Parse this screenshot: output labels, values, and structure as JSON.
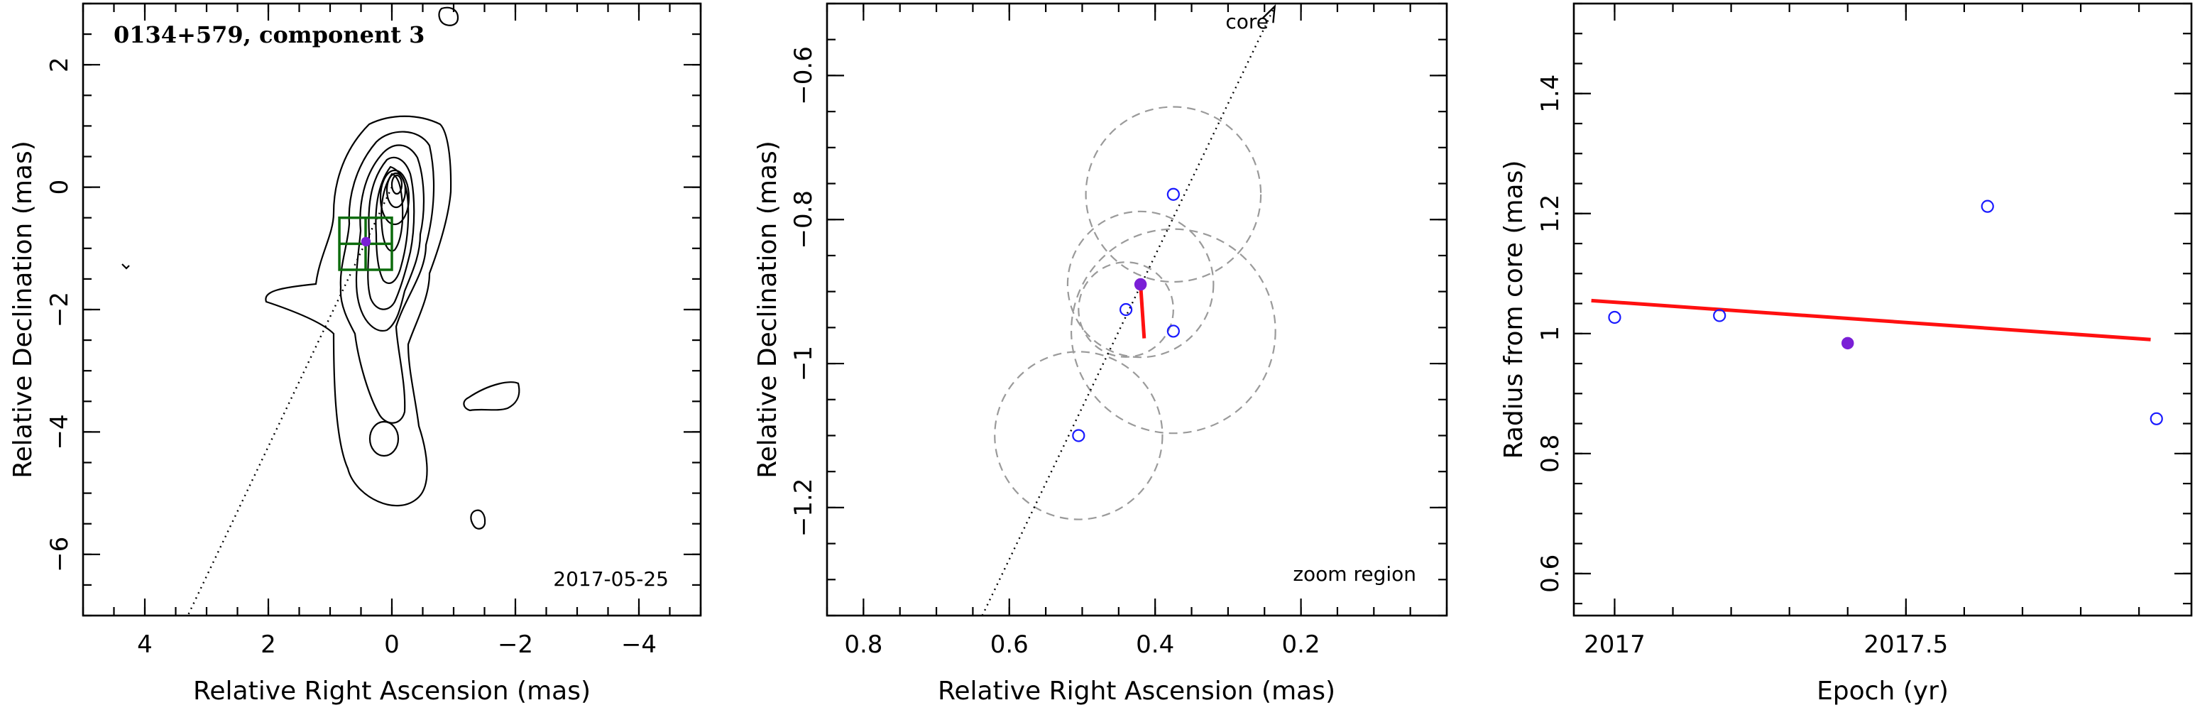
{
  "colors": {
    "open_point": "#1a1aff",
    "current_point": "#7a1fd6",
    "fit_line": "#ff1010",
    "error_circle": "#9a9a9a",
    "zoom_box": "#0c6b0c"
  },
  "chart_data": [
    {
      "type": "contour",
      "title": "0134+579, component 3",
      "annotation": "2017-05-25",
      "xlabel": "Relative Right Ascension (mas)",
      "ylabel": "Relative Declination (mas)",
      "xlim": [
        5,
        -5
      ],
      "ylim": [
        -7,
        3
      ],
      "xticks": [
        4,
        2,
        0,
        -2,
        -4
      ],
      "yticks": [
        2,
        0,
        -2,
        -4,
        -6
      ],
      "xtick_labels": [
        "4",
        "2",
        "0",
        "−2",
        "−4"
      ],
      "ytick_labels": [
        "2",
        "0",
        "−2",
        "−4",
        "−6"
      ],
      "component_position": {
        "x": 0.42,
        "y": -0.89
      },
      "zoom_box": {
        "x": [
          0.85,
          0.0
        ],
        "y": [
          -1.35,
          -0.5
        ]
      }
    },
    {
      "type": "scatter",
      "annotation_core": "core",
      "annotation_region": "zoom region",
      "xlabel": "Relative Right Ascension (mas)",
      "ylabel": "Relative Declination (mas)",
      "xlim": [
        0.85,
        0.0
      ],
      "ylim": [
        -1.35,
        -0.5
      ],
      "xticks": [
        0.8,
        0.6,
        0.4,
        0.2
      ],
      "yticks": [
        -0.6,
        -0.8,
        -1,
        -1.2
      ],
      "xtick_labels": [
        "0.8",
        "0.6",
        "0.4",
        "0.2"
      ],
      "ytick_labels": [
        "−0.6",
        "−0.8",
        "−1",
        "−1.2"
      ],
      "points": [
        {
          "x": 0.375,
          "y": -0.765,
          "err": 0.12,
          "current": false
        },
        {
          "x": 0.44,
          "y": -0.925,
          "err": 0.065,
          "current": false
        },
        {
          "x": 0.375,
          "y": -0.955,
          "err": 0.14,
          "current": false
        },
        {
          "x": 0.505,
          "y": -1.1,
          "err": 0.115,
          "current": false
        },
        {
          "x": 0.42,
          "y": -0.89,
          "err": 0.1,
          "current": true
        }
      ],
      "velocity_vector": {
        "from": [
          0.42,
          -0.89
        ],
        "to": [
          0.415,
          -0.965
        ]
      }
    },
    {
      "type": "scatter",
      "xlabel": "Epoch (yr)",
      "ylabel": "Radius from core (mas)",
      "xlim": [
        2016.93,
        2017.99
      ],
      "ylim": [
        0.53,
        1.55
      ],
      "xticks": [
        2017,
        2017.5
      ],
      "yticks": [
        0.6,
        0.8,
        1,
        1.2,
        1.4
      ],
      "xtick_labels": [
        "2017",
        "2017.5"
      ],
      "ytick_labels": [
        "0.6",
        "0.8",
        "1",
        "1.2",
        "1.4"
      ],
      "points": [
        {
          "x": 2017.0,
          "y": 1.027,
          "current": false
        },
        {
          "x": 2017.18,
          "y": 1.03,
          "current": false
        },
        {
          "x": 2017.4,
          "y": 0.984,
          "current": true
        },
        {
          "x": 2017.64,
          "y": 1.212,
          "current": false
        },
        {
          "x": 2017.93,
          "y": 0.858,
          "current": false
        }
      ],
      "fit": {
        "x": [
          2016.96,
          2017.92
        ],
        "y": [
          1.055,
          0.99
        ]
      }
    }
  ]
}
